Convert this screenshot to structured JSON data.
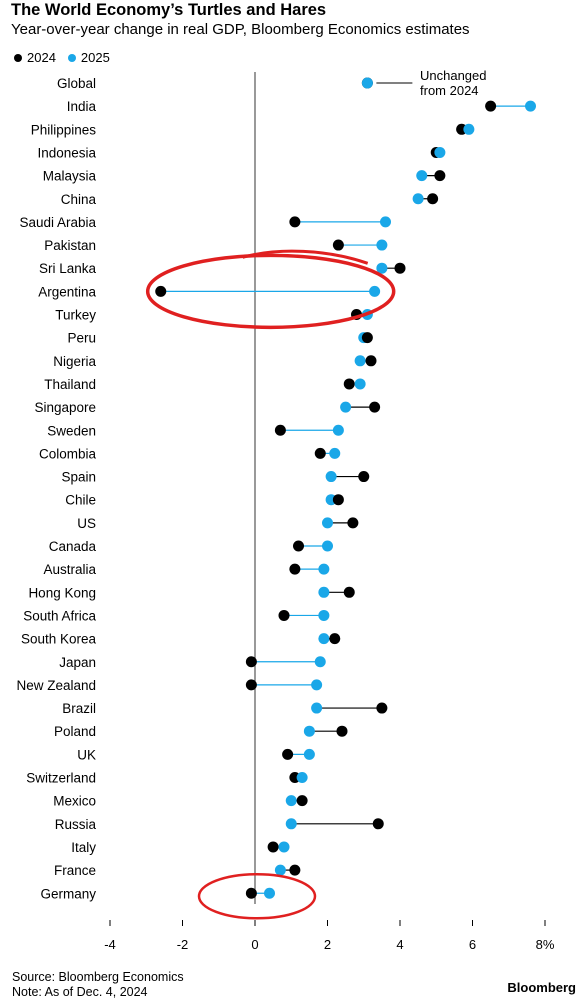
{
  "title": "The World Economy’s Turtles and Hares",
  "subtitle": "Year-over-year change in real GDP, Bloomberg Economics estimates",
  "legend": [
    {
      "label": "2024",
      "color": "#000000"
    },
    {
      "label": "2025",
      "color": "#1aa7e8"
    }
  ],
  "annotation": "Unchanged\nfrom 2024",
  "source": "Source: Bloomberg Economics",
  "note": "Note: As of Dec. 4, 2024",
  "logo": "Bloomberg",
  "colors": {
    "y2024": "#000000",
    "y2025": "#1aa7e8",
    "connector_2025_higher": "#1aa7e8",
    "connector_2025_lower": "#000000",
    "highlight_circle": "#e02020",
    "zero_line": "#000000"
  },
  "chart_data": {
    "type": "dumbbell",
    "xlim": [
      -4,
      8
    ],
    "xticks": [
      -4,
      -2,
      0,
      2,
      4,
      6,
      8
    ],
    "xtick_labels": [
      "-4",
      "-2",
      "0",
      "2",
      "4",
      "6",
      "8%"
    ],
    "series_names": [
      "2024",
      "2025"
    ],
    "rows": [
      {
        "country": "Global",
        "v2024": 3.1,
        "v2025": 3.1
      },
      {
        "country": "India",
        "v2024": 6.5,
        "v2025": 7.6
      },
      {
        "country": "Philippines",
        "v2024": 5.7,
        "v2025": 5.9
      },
      {
        "country": "Indonesia",
        "v2024": 5.0,
        "v2025": 5.1
      },
      {
        "country": "Malaysia",
        "v2024": 5.1,
        "v2025": 4.6
      },
      {
        "country": "China",
        "v2024": 4.9,
        "v2025": 4.5
      },
      {
        "country": "Saudi Arabia",
        "v2024": 1.1,
        "v2025": 3.6
      },
      {
        "country": "Pakistan",
        "v2024": 2.3,
        "v2025": 3.5
      },
      {
        "country": "Sri Lanka",
        "v2024": 4.0,
        "v2025": 3.5
      },
      {
        "country": "Argentina",
        "v2024": -2.6,
        "v2025": 3.3
      },
      {
        "country": "Turkey",
        "v2024": 2.8,
        "v2025": 3.1
      },
      {
        "country": "Peru",
        "v2024": 3.1,
        "v2025": 3.0
      },
      {
        "country": "Nigeria",
        "v2024": 3.2,
        "v2025": 2.9
      },
      {
        "country": "Thailand",
        "v2024": 2.6,
        "v2025": 2.9
      },
      {
        "country": "Singapore",
        "v2024": 3.3,
        "v2025": 2.5
      },
      {
        "country": "Sweden",
        "v2024": 0.7,
        "v2025": 2.3
      },
      {
        "country": "Colombia",
        "v2024": 1.8,
        "v2025": 2.2
      },
      {
        "country": "Spain",
        "v2024": 3.0,
        "v2025": 2.1
      },
      {
        "country": "Chile",
        "v2024": 2.3,
        "v2025": 2.1
      },
      {
        "country": "US",
        "v2024": 2.7,
        "v2025": 2.0
      },
      {
        "country": "Canada",
        "v2024": 1.2,
        "v2025": 2.0
      },
      {
        "country": "Australia",
        "v2024": 1.1,
        "v2025": 1.9
      },
      {
        "country": "Hong Kong",
        "v2024": 2.6,
        "v2025": 1.9
      },
      {
        "country": "South Africa",
        "v2024": 0.8,
        "v2025": 1.9
      },
      {
        "country": "South Korea",
        "v2024": 2.2,
        "v2025": 1.9
      },
      {
        "country": "Japan",
        "v2024": -0.1,
        "v2025": 1.8
      },
      {
        "country": "New Zealand",
        "v2024": -0.1,
        "v2025": 1.7
      },
      {
        "country": "Brazil",
        "v2024": 3.5,
        "v2025": 1.7
      },
      {
        "country": "Poland",
        "v2024": 2.4,
        "v2025": 1.5
      },
      {
        "country": "UK",
        "v2024": 0.9,
        "v2025": 1.5
      },
      {
        "country": "Switzerland",
        "v2024": 1.1,
        "v2025": 1.3
      },
      {
        "country": "Mexico",
        "v2024": 1.3,
        "v2025": 1.0
      },
      {
        "country": "Russia",
        "v2024": 3.4,
        "v2025": 1.0
      },
      {
        "country": "Italy",
        "v2024": 0.5,
        "v2025": 0.8
      },
      {
        "country": "France",
        "v2024": 1.1,
        "v2025": 0.7
      },
      {
        "country": "Germany",
        "v2024": -0.1,
        "v2025": 0.4
      }
    ]
  }
}
